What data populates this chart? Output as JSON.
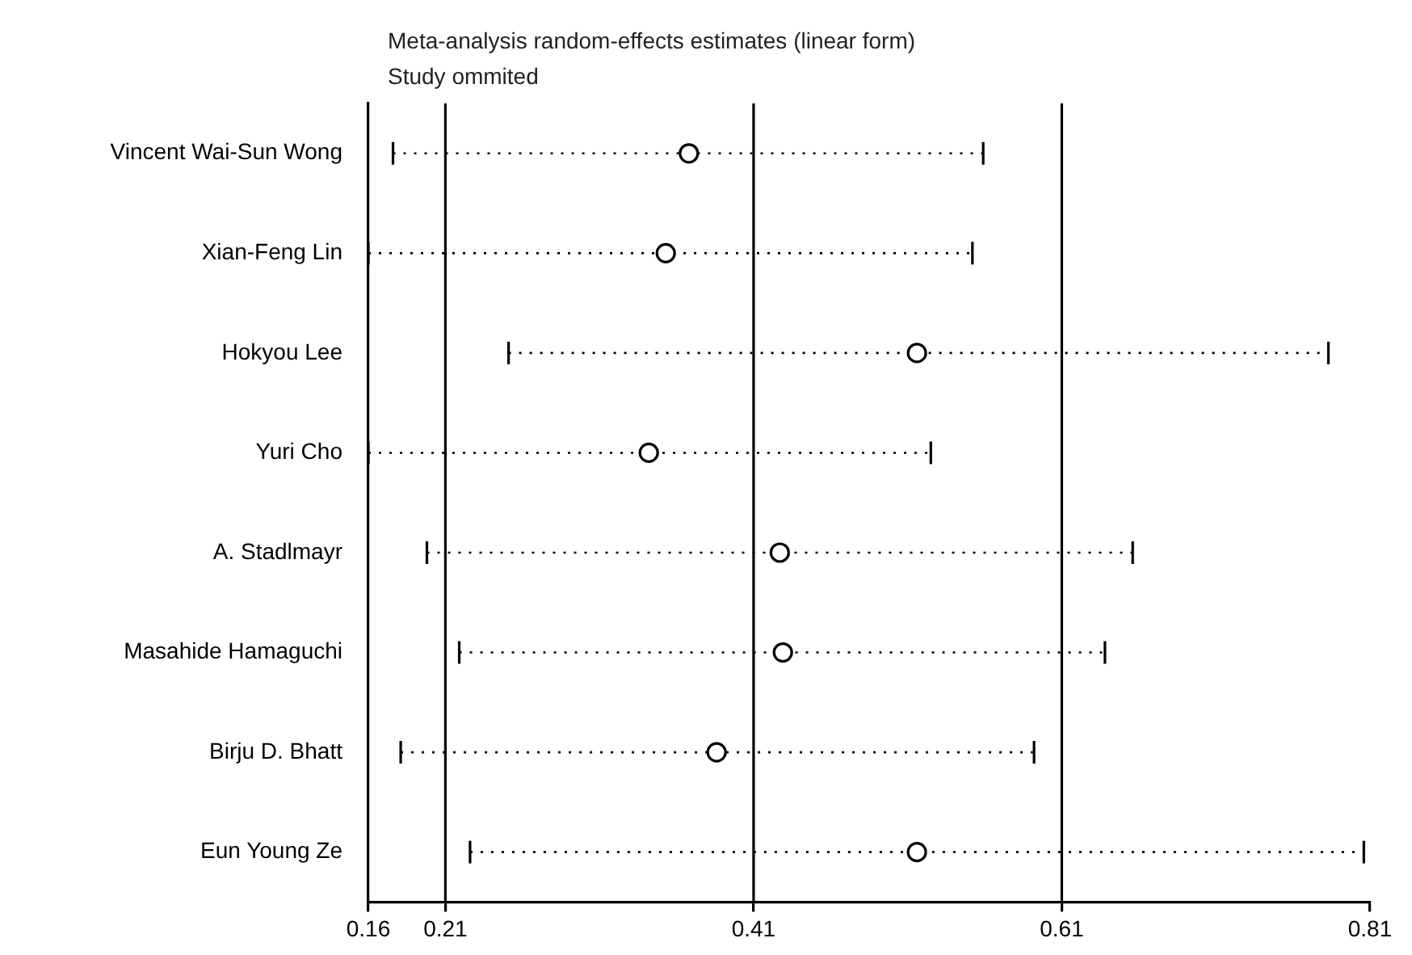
{
  "chart_data": {
    "type": "scatter",
    "orientation": "horizontal",
    "title": "Meta-analysis random-effects estimates (linear form)",
    "subtitle": "Study ommited",
    "categories": [
      "Vincent Wai-Sun Wong",
      "Xian-Feng Lin",
      "Hokyou Lee",
      "Yuri Cho",
      "A. Stadlmayr",
      "Masahide Hamaguchi",
      "Birju D. Bhatt",
      "Eun Young Ze"
    ],
    "values": [
      0.368,
      0.353,
      0.516,
      0.342,
      0.427,
      0.429,
      0.386,
      0.516
    ],
    "errors": [
      [
        0.176,
        0.559
      ],
      [
        0.16,
        0.552
      ],
      [
        0.251,
        0.783
      ],
      [
        0.16,
        0.525
      ],
      [
        0.198,
        0.656
      ],
      [
        0.219,
        0.638
      ],
      [
        0.181,
        0.592
      ],
      [
        0.226,
        0.806
      ]
    ],
    "color": "#000000",
    "marker": "circle",
    "line_style": "dotted",
    "xlim": [
      0.16,
      0.81
    ],
    "xticks": [
      0.16,
      0.21,
      0.41,
      0.61,
      0.81
    ],
    "ref_lines": [
      {
        "axis": "x",
        "value": 0.21
      },
      {
        "axis": "x",
        "value": 0.41
      },
      {
        "axis": "x",
        "value": 0.61
      }
    ],
    "grid": false,
    "legend": false
  }
}
